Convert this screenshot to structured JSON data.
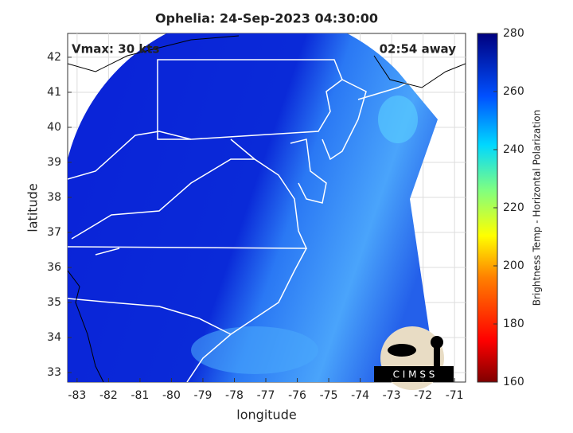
{
  "title": "Ophelia: 24-Sep-2023 04:30:00",
  "annotations": {
    "intensity": "Vmax: 30 kts",
    "time_away": "02:54 away"
  },
  "xlabel": "longitude",
  "ylabel": "latitude",
  "xlim": [
    -83.3,
    -70.65
  ],
  "xticks": [
    -83,
    -82,
    -81,
    -80,
    -79,
    -78,
    -77,
    -76,
    -75,
    -74,
    -73,
    -72,
    -71
  ],
  "ylim": [
    32.73,
    42.68
  ],
  "yticks": [
    33,
    34,
    35,
    36,
    37,
    38,
    39,
    40,
    41,
    42
  ],
  "grid": true,
  "colorbar": {
    "label": "Brightness Temp - Horizontal Polarization",
    "lim": [
      160,
      280
    ],
    "ticks": [
      160,
      180,
      200,
      220,
      240,
      260,
      280
    ]
  },
  "logo": "C I M S S"
}
